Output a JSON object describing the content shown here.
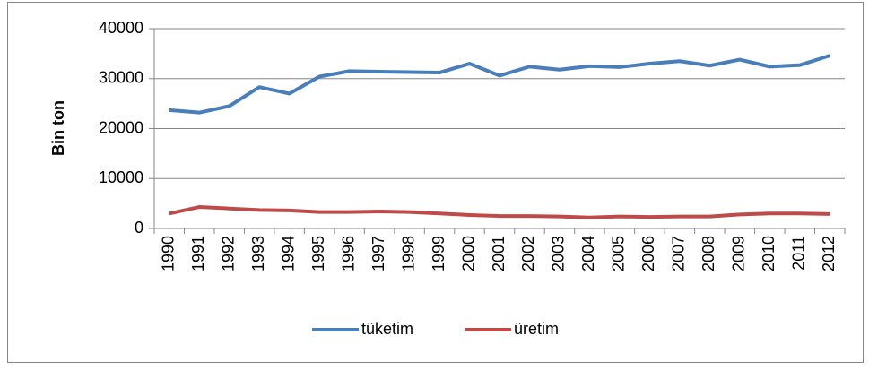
{
  "chart_data": {
    "type": "line",
    "y_label": "Bin ton",
    "categories": [
      "1990",
      "1991",
      "1992",
      "1993",
      "1994",
      "1995",
      "1996",
      "1997",
      "1998",
      "1999",
      "2000",
      "2001",
      "2002",
      "2003",
      "2004",
      "2005",
      "2006",
      "2007",
      "2008",
      "2009",
      "2010",
      "2011",
      "2012"
    ],
    "series": [
      {
        "name": "tüketim",
        "color": "#4a7ebb",
        "values": [
          23700,
          23200,
          24500,
          28300,
          27000,
          30400,
          31500,
          31400,
          31300,
          31200,
          33000,
          30600,
          32400,
          31800,
          32500,
          32300,
          33000,
          33500,
          32600,
          33800,
          32400,
          32700,
          34600
        ]
      },
      {
        "name": "üretim",
        "color": "#be4b48",
        "values": [
          3000,
          4300,
          4000,
          3700,
          3600,
          3300,
          3300,
          3400,
          3300,
          3000,
          2700,
          2500,
          2500,
          2400,
          2200,
          2400,
          2300,
          2400,
          2400,
          2800,
          3000,
          3000,
          2900
        ]
      }
    ],
    "ylim": [
      0,
      40000
    ],
    "yticks": [
      0,
      10000,
      20000,
      30000,
      40000
    ],
    "grid": true,
    "legend": "bottom"
  }
}
